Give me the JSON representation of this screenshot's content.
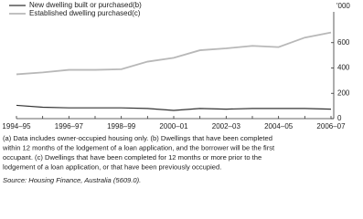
{
  "chart_data": {
    "type": "line",
    "y_unit_label": "'000",
    "categories": [
      "1994–95",
      null,
      "1996–97",
      null,
      "1998–99",
      null,
      "2000–01",
      null,
      "2002–03",
      null,
      "2004–05",
      null,
      "2006–07"
    ],
    "series": [
      {
        "name": "New dwelling built or purchased(b)",
        "color": "#333333",
        "values": [
          105,
          90,
          85,
          85,
          85,
          80,
          65,
          80,
          75,
          80,
          80,
          80,
          75
        ]
      },
      {
        "name": "Established dwelling purchased(c)",
        "color": "#b8b8b8",
        "values": [
          350,
          365,
          385,
          385,
          390,
          450,
          480,
          540,
          555,
          575,
          565,
          640,
          680
        ]
      }
    ],
    "ylim": [
      0,
      800
    ],
    "yticks": [
      0,
      200,
      400,
      600
    ],
    "y_axis_side": "right",
    "legend": "top-left",
    "notes": [
      "(a) Data includes owner-occupied housing only. (b) Dwellings that have been completed",
      "within 12 months of the lodgement of a loan application, and the borrower will be the first",
      "occupant. (c) Dwellings that have been completed for 12 months or more prior to the",
      "lodgement of a loan application, or that have been previously occupied."
    ],
    "source": "Source: Housing Finance, Australia (5609.0)."
  }
}
